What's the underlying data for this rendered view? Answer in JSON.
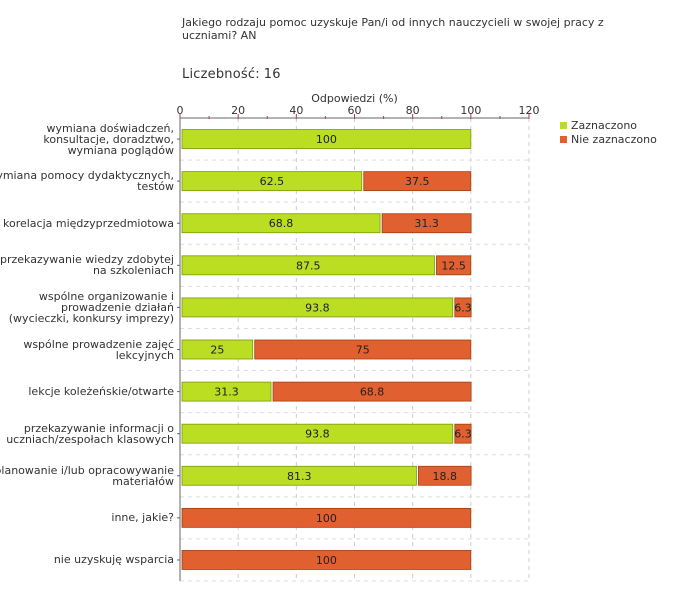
{
  "header": {
    "title": "Jakiego rodzaju pomoc uzyskuje Pan/i od innych nauczycieli w swojej pracy z uczniami? AN",
    "count_label": "Liczebność:",
    "count_value": "16"
  },
  "chart_data": {
    "type": "bar",
    "orientation": "horizontal",
    "stacked": true,
    "xlabel": "Odpowiedzi (%)",
    "xlim": [
      0,
      120
    ],
    "xticks": [
      0,
      20,
      40,
      60,
      80,
      100,
      120
    ],
    "grid": true,
    "legend_position": "top-right",
    "categories": [
      "wymiana doświadczeń,\nkonsultacje, doradztwo,\nwymiana poglądów",
      "wymiana pomocy dydaktycznych,\ntestów",
      "korelacja międzyprzedmiotowa",
      "przekazywanie wiedzy zdobytej\nna szkoleniach",
      "wspólne organizowanie i\nprowadzenie działań\n(wycieczki, konkursy imprezy)",
      "wspólne prowadzenie zajęć\nlekcyjnych",
      "lekcje koleżeńskie/otwarte",
      "przekazywanie informacji o\nuczniach/zespołach klasowych",
      "planowanie i/lub opracowywanie\nmateriałów",
      "inne, jakie?",
      "nie uzyskuję wsparcia"
    ],
    "series": [
      {
        "name": "Zaznaczono",
        "color": "#bbdd22",
        "values": [
          100,
          62.5,
          68.8,
          87.5,
          93.8,
          25,
          31.3,
          93.8,
          81.3,
          0,
          0
        ],
        "labels": [
          "100",
          "62.5",
          "68.8",
          "87.5",
          "93.8",
          "25",
          "31.3",
          "93.8",
          "81.3",
          "",
          ""
        ]
      },
      {
        "name": "Nie zaznaczono",
        "color": "#e06030",
        "values": [
          0,
          37.5,
          31.3,
          12.5,
          6.3,
          75,
          68.8,
          6.3,
          18.8,
          100,
          100
        ],
        "labels": [
          "",
          "37.5",
          "31.3",
          "12.5",
          "6.3",
          "75",
          "68.8",
          "6.3",
          "18.8",
          "100",
          "100"
        ]
      }
    ]
  }
}
